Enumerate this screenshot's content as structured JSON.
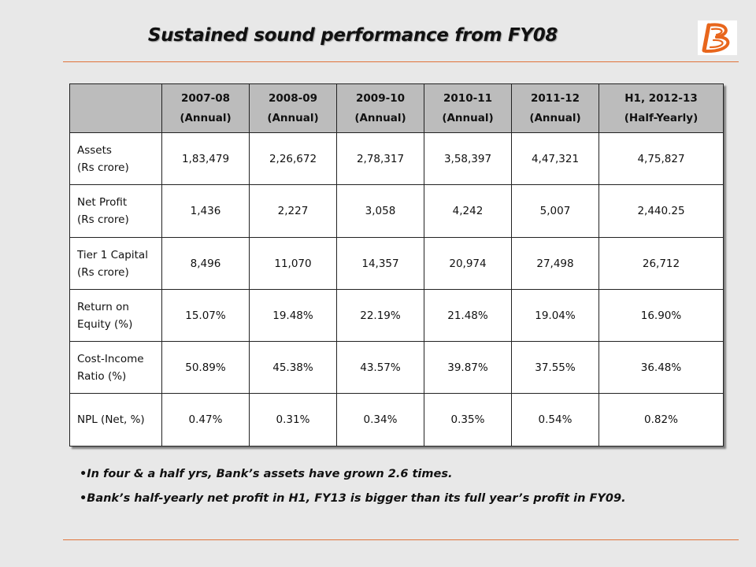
{
  "title": "Sustained sound performance from FY08",
  "logo": {
    "icon": "bank-of-baroda-logo",
    "color": "#e8661c"
  },
  "colors": {
    "rule": "#e0733a",
    "header_bg": "#bcbcbc",
    "background": "#e8e8e8"
  },
  "table": {
    "headers": [
      {
        "line1": "",
        "line2": ""
      },
      {
        "line1": "2007-08",
        "line2": "(Annual)"
      },
      {
        "line1": "2008-09",
        "line2": "(Annual)"
      },
      {
        "line1": "2009-10",
        "line2": "(Annual)"
      },
      {
        "line1": "2010-11",
        "line2": "(Annual)"
      },
      {
        "line1": "2011-12",
        "line2": "(Annual)"
      },
      {
        "line1": "H1, 2012-13",
        "line2": "(Half-Yearly)"
      }
    ],
    "rows": [
      {
        "label1": "Assets",
        "label2": "(Rs crore)",
        "values": [
          "1,83,479",
          "2,26,672",
          "2,78,317",
          "3,58,397",
          "4,47,321",
          "4,75,827"
        ]
      },
      {
        "label1": "Net Profit",
        "label2": "(Rs crore)",
        "values": [
          "1,436",
          "2,227",
          "3,058",
          "4,242",
          "5,007",
          "2,440.25"
        ]
      },
      {
        "label1": "Tier 1 Capital",
        "label2": "(Rs crore)",
        "values": [
          "8,496",
          "11,070",
          "14,357",
          "20,974",
          "27,498",
          "26,712"
        ]
      },
      {
        "label1": "Return on",
        "label2": "Equity (%)",
        "values": [
          "15.07%",
          "19.48%",
          "22.19%",
          "21.48%",
          "19.04%",
          "16.90%"
        ]
      },
      {
        "label1": "Cost-Income",
        "label2": "Ratio (%)",
        "values": [
          "50.89%",
          "45.38%",
          "43.57%",
          "39.87%",
          "37.55%",
          "36.48%"
        ]
      },
      {
        "label1": "NPL (Net, %)",
        "label2": "",
        "values": [
          "0.47%",
          "0.31%",
          "0.34%",
          "0.35%",
          "0.54%",
          "0.82%"
        ]
      }
    ]
  },
  "bullets": [
    "•In four & a half yrs, Bank’s assets have grown 2.6 times.",
    "•Bank’s half-yearly net profit in H1, FY13 is bigger than its full year’s profit in FY09."
  ]
}
